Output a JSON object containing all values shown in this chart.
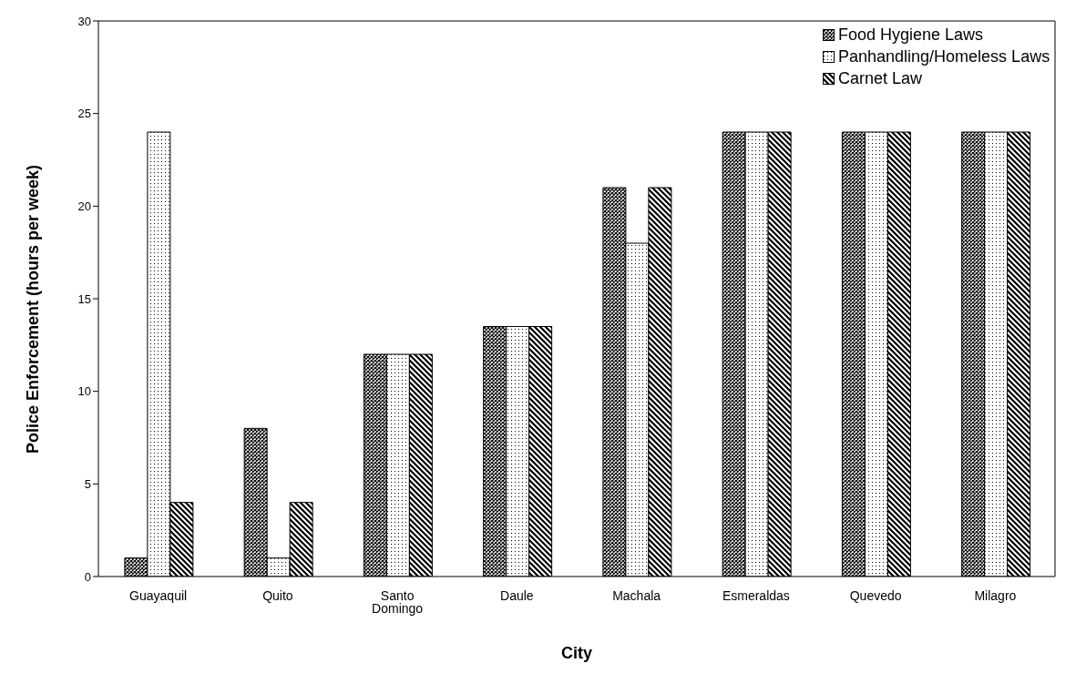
{
  "chart_data": {
    "type": "bar",
    "xlabel": "City",
    "ylabel": "Police Enforcement  (hours per week)",
    "categories": [
      "Guayaquil",
      "Quito",
      "Santo Domingo",
      "Daule",
      "Machala",
      "Esmeraldas",
      "Quevedo",
      "Milagro"
    ],
    "series": [
      {
        "name": "Food Hygiene Laws",
        "color": "#000000",
        "values": [
          1,
          8,
          12,
          13.5,
          21,
          24,
          24,
          24
        ]
      },
      {
        "name": "Panhandling/Homeless Laws",
        "color": "#000000",
        "values": [
          24,
          1,
          12,
          13.5,
          18,
          24,
          24,
          24
        ]
      },
      {
        "name": "Carnet Law",
        "color": "#000000",
        "values": [
          4,
          4,
          12,
          13.5,
          21,
          24,
          24,
          24
        ]
      }
    ],
    "ylim": [
      0,
      30
    ],
    "yticks": [
      0,
      5,
      10,
      15,
      20,
      25,
      30
    ],
    "grid": false,
    "legend": "top right"
  }
}
